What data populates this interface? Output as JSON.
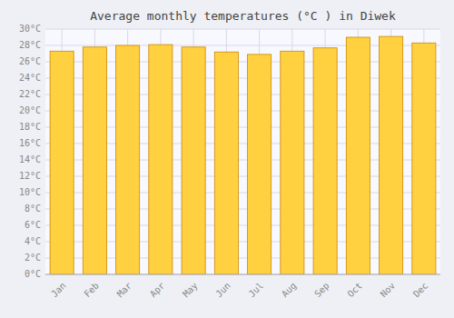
{
  "chart_data": {
    "type": "bar",
    "title": "Average monthly temperatures (°C ) in Diwek",
    "categories": [
      "Jan",
      "Feb",
      "Mar",
      "Apr",
      "May",
      "Jun",
      "Jul",
      "Aug",
      "Sep",
      "Oct",
      "Nov",
      "Dec"
    ],
    "values": [
      27.3,
      27.8,
      28.0,
      28.1,
      27.8,
      27.2,
      26.9,
      27.3,
      27.7,
      29.0,
      29.1,
      28.3
    ],
    "color": "#FFD040",
    "ylim": [
      0,
      30
    ],
    "yticks": [
      {
        "value": 0,
        "label": "0°C"
      },
      {
        "value": 2,
        "label": "2°C"
      },
      {
        "value": 4,
        "label": "4°C"
      },
      {
        "value": 6,
        "label": "6°C"
      },
      {
        "value": 8,
        "label": "8°C"
      },
      {
        "value": 10,
        "label": "10°C"
      },
      {
        "value": 12,
        "label": "12°C"
      },
      {
        "value": 14,
        "label": "14°C"
      },
      {
        "value": 16,
        "label": "16°C"
      },
      {
        "value": 18,
        "label": "18°C"
      },
      {
        "value": 20,
        "label": "20°C"
      },
      {
        "value": 22,
        "label": "22°C"
      },
      {
        "value": 24,
        "label": "24°C"
      },
      {
        "value": 26,
        "label": "26°C"
      },
      {
        "value": 28,
        "label": "28°C"
      },
      {
        "value": 30,
        "label": "30°C"
      }
    ],
    "grid": true
  }
}
